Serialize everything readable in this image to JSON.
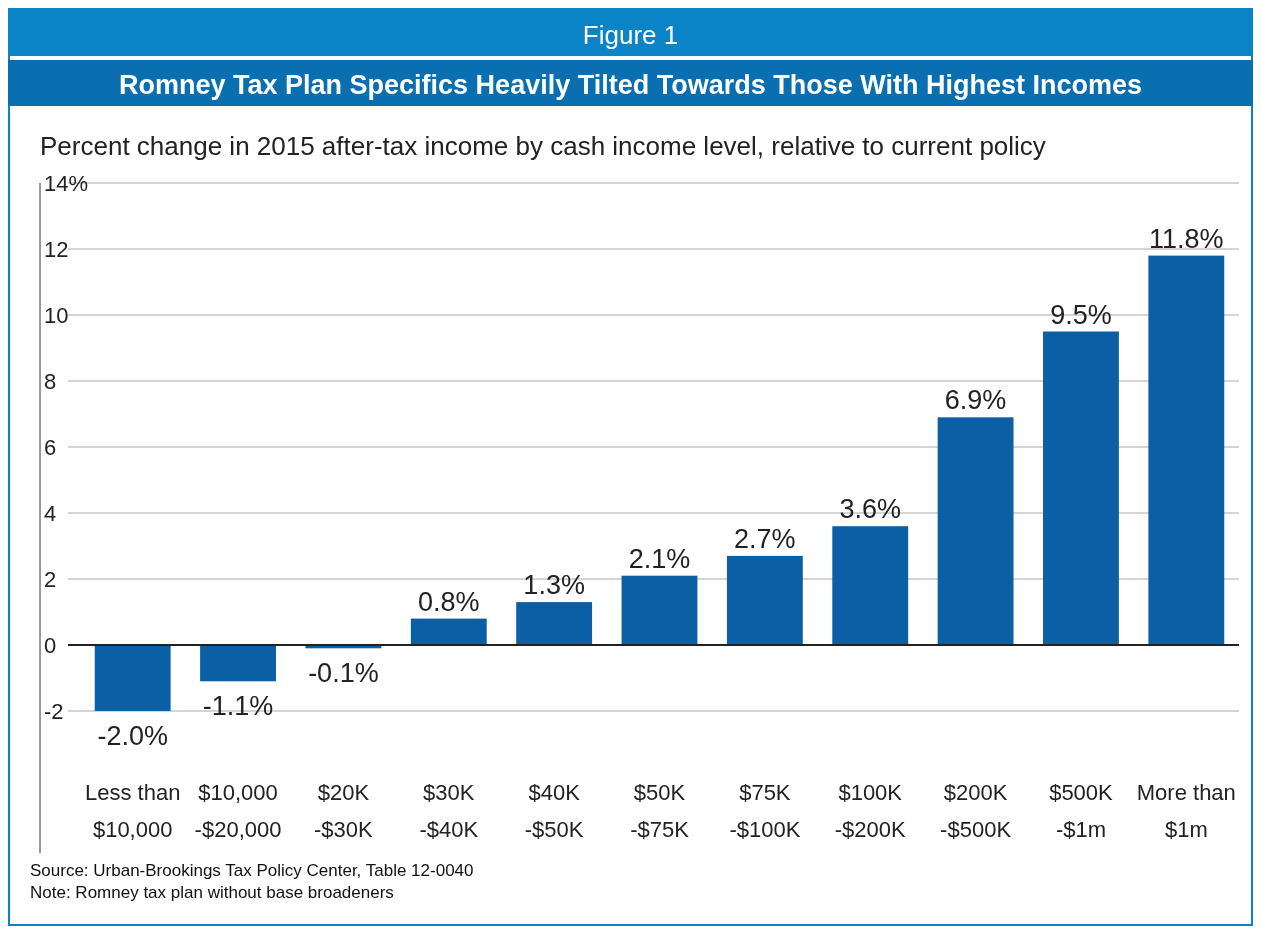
{
  "chart_data": {
    "type": "bar",
    "title": "Figure 1",
    "subtitle": "Romney Tax Plan Specifics Heavily Tilted Towards Those With Highest Incomes",
    "ylabel": "Percent change in 2015 after-tax income by cash income level, relative to current policy",
    "categories": [
      "Less than\n$10,000",
      "$10,000\n-$20,000",
      "$20K\n-$30K",
      "$30K\n-$40K",
      "$40K\n-$50K",
      "$50K\n-$75K",
      "$75K\n-$100K",
      "$100K\n-$200K",
      "$200K\n-$500K",
      "$500K\n-$1m",
      "More than\n$1m"
    ],
    "values": [
      -2.0,
      -1.1,
      -0.1,
      0.8,
      1.3,
      2.1,
      2.7,
      3.6,
      6.9,
      9.5,
      11.8
    ],
    "value_labels": [
      "-2.0%",
      "-1.1%",
      "-0.1%",
      "0.8%",
      "1.3%",
      "2.1%",
      "2.7%",
      "3.6%",
      "6.9%",
      "9.5%",
      "11.8%"
    ],
    "color": "#0b5fa5",
    "ylim": [
      -2,
      14
    ],
    "yticks": [
      -2,
      0,
      2,
      4,
      6,
      8,
      10,
      12,
      {
        "value": 14,
        "label": "14%"
      }
    ],
    "grid": "y",
    "annotations": [
      "Source: Urban-Brookings Tax Policy Center, Table 12-0040",
      "Note: Romney tax plan without base broadeners"
    ]
  }
}
